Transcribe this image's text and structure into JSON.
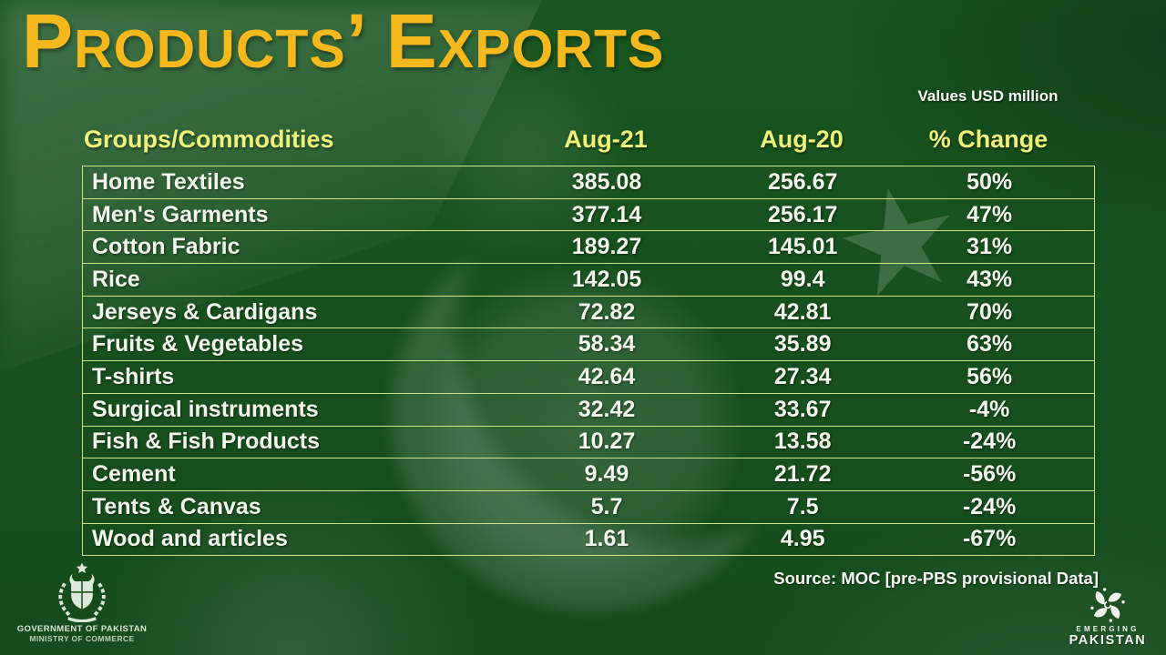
{
  "page": {
    "title": "Products’ Exports",
    "unit_note": "Values USD million",
    "source_note": "Source: MOC [pre-PBS provisional Data]"
  },
  "chart_data": {
    "type": "table",
    "title": "Products' Exports",
    "unit": "USD million",
    "columns": [
      "Groups/Commodities",
      "Aug-21",
      "Aug-20",
      "% Change"
    ],
    "rows": [
      [
        "Home Textiles",
        "385.08",
        "256.67",
        "50%"
      ],
      [
        "Men's Garments",
        "377.14",
        "256.17",
        "47%"
      ],
      [
        "Cotton Fabric",
        "189.27",
        "145.01",
        "31%"
      ],
      [
        "Rice",
        "142.05",
        "99.4",
        "43%"
      ],
      [
        "Jerseys & Cardigans",
        "72.82",
        "42.81",
        "70%"
      ],
      [
        "Fruits & Vegetables",
        "58.34",
        "35.89",
        "63%"
      ],
      [
        "T-shirts",
        "42.64",
        "27.34",
        "56%"
      ],
      [
        "Surgical instruments",
        "32.42",
        "33.67",
        "-4%"
      ],
      [
        "Fish & Fish Products",
        "10.27",
        "13.58",
        "-24%"
      ],
      [
        "Cement",
        "9.49",
        "21.72",
        "-56%"
      ],
      [
        "Tents & Canvas",
        "5.7",
        "7.5",
        "-24%"
      ],
      [
        "Wood and articles",
        "1.61",
        "4.95",
        "-67%"
      ]
    ],
    "source": "MOC [pre-PBS provisional Data]"
  },
  "footer": {
    "gov_line1": "GOVERNMENT OF PAKISTAN",
    "gov_line2": "MINISTRY OF COMMERCE",
    "brand_line1": "EMERGING",
    "brand_line2": "PAKISTAN"
  },
  "colors": {
    "background_green": "#1a5a22",
    "title_gold": "#f5b91e",
    "header_yellow": "#eef27d",
    "row_text": "#f3f6ec",
    "grid_line": "#cde287"
  }
}
